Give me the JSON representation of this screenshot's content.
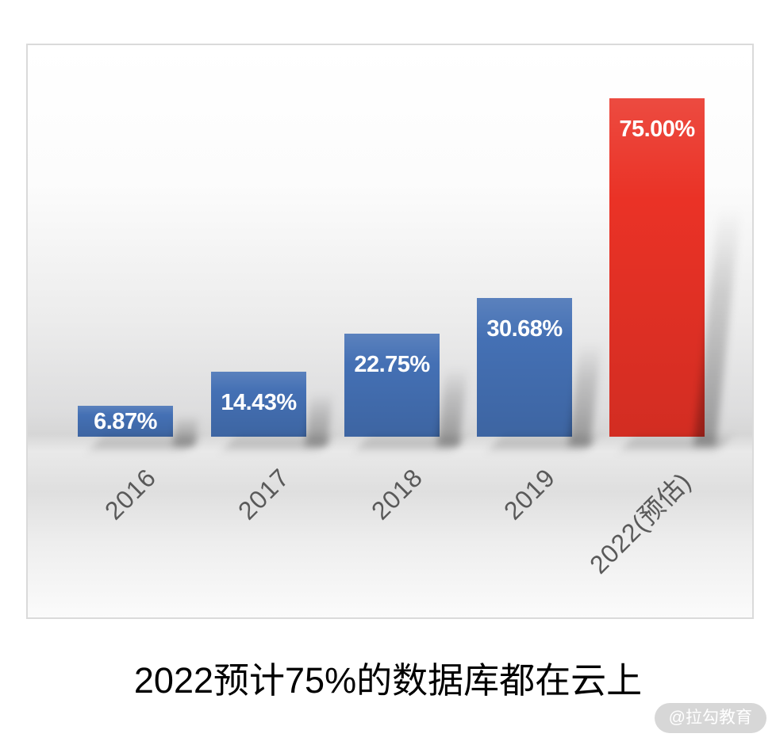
{
  "chart_data": {
    "type": "bar",
    "title": "2022预计75%的数据库都在云上",
    "categories": [
      "2016",
      "2017",
      "2018",
      "2019",
      "2022(预估)"
    ],
    "values": [
      6.87,
      14.43,
      22.75,
      30.68,
      75.0
    ],
    "data_labels": [
      "6.87%",
      "14.43%",
      "22.75%",
      "30.68%",
      "75.00%"
    ],
    "bar_colors": [
      "#4470B4",
      "#4470B4",
      "#4470B4",
      "#4470B4",
      "#EA3226"
    ],
    "highlight_index": 4,
    "ylim": [
      0,
      80
    ],
    "grid": false,
    "legend": false,
    "xlabel": "",
    "ylabel": "",
    "data_label_color": "#ffffff",
    "axis_label_color": "#595959"
  },
  "watermark": {
    "text": "@拉勾教育",
    "bg": "#d7d7d7",
    "color": "#ffffff"
  }
}
